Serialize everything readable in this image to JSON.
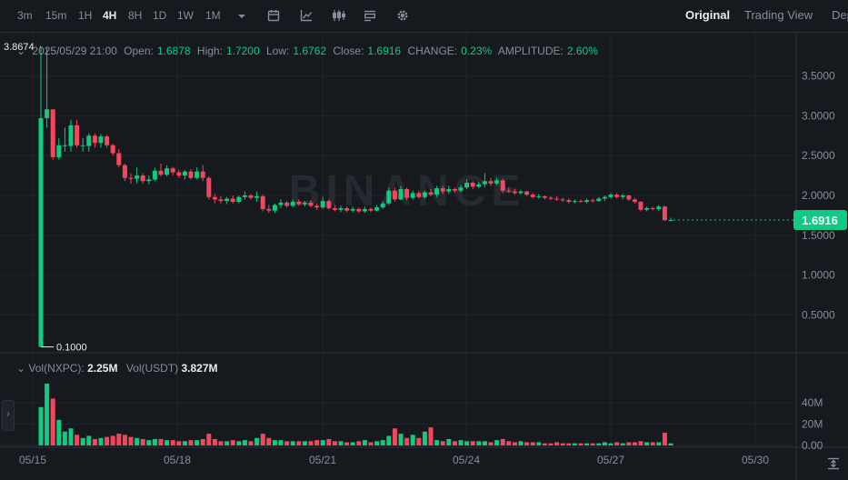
{
  "toolbar": {
    "timeframes": [
      "3m",
      "15m",
      "1H",
      "4H",
      "8H",
      "1D",
      "1W",
      "1M"
    ],
    "active_timeframe": "4H",
    "views": [
      "Original",
      "Trading View",
      "Depth"
    ],
    "active_view": "Original"
  },
  "ohlc": {
    "datetime": "2025/05/29 21:00",
    "open_label": "Open:",
    "open": "1.6878",
    "high_label": "High:",
    "high": "1.7200",
    "low_label": "Low:",
    "low": "1.6762",
    "close_label": "Close:",
    "close": "1.6916",
    "change_label": "CHANGE:",
    "change": "0.23%",
    "amplitude_label": "AMPLITUDE:",
    "amplitude": "2.60%"
  },
  "volume": {
    "label_a": "Vol(NXPC):",
    "value_a": "2.25M",
    "label_b": "Vol(USDT)",
    "value_b": "3.827M"
  },
  "colors": {
    "up": "#0ecb81",
    "down": "#f6465d",
    "grid": "#1f242b",
    "text": "#848e9c",
    "bg": "#161a1e"
  },
  "watermark": "BINANCE",
  "chart_data": {
    "type": "candlestick",
    "price_axis_ticks": [
      "3.5000",
      "3.0000",
      "2.5000",
      "2.0000",
      "1.5000",
      "1.0000",
      "0.5000"
    ],
    "price_ylim": [
      0.05,
      3.95
    ],
    "volume_axis_ticks": [
      "40M",
      "20M",
      "0.00"
    ],
    "volume_ylim": [
      0,
      58
    ],
    "x_ticks": [
      "05/15",
      "05/18",
      "05/21",
      "05/24",
      "05/27",
      "05/30"
    ],
    "last_price": "1.6916",
    "high_marker": "3.8674",
    "low_marker": "0.1000",
    "candles": [
      {
        "o": 0.1,
        "h": 3.8674,
        "l": 0.1,
        "c": 2.97,
        "v": 36
      },
      {
        "o": 2.97,
        "h": 3.85,
        "l": 2.85,
        "c": 3.08,
        "v": 58
      },
      {
        "o": 3.08,
        "h": 3.08,
        "l": 2.45,
        "c": 2.48,
        "v": 44
      },
      {
        "o": 2.48,
        "h": 2.72,
        "l": 2.45,
        "c": 2.63,
        "v": 24
      },
      {
        "o": 2.63,
        "h": 2.85,
        "l": 2.55,
        "c": 2.63,
        "v": 13
      },
      {
        "o": 2.62,
        "h": 2.95,
        "l": 2.55,
        "c": 2.88,
        "v": 16
      },
      {
        "o": 2.88,
        "h": 2.95,
        "l": 2.6,
        "c": 2.63,
        "v": 10
      },
      {
        "o": 2.63,
        "h": 2.72,
        "l": 2.55,
        "c": 2.63,
        "v": 7
      },
      {
        "o": 2.62,
        "h": 2.78,
        "l": 2.55,
        "c": 2.75,
        "v": 9
      },
      {
        "o": 2.75,
        "h": 2.78,
        "l": 2.6,
        "c": 2.66,
        "v": 6
      },
      {
        "o": 2.66,
        "h": 2.77,
        "l": 2.6,
        "c": 2.74,
        "v": 7
      },
      {
        "o": 2.74,
        "h": 2.76,
        "l": 2.6,
        "c": 2.63,
        "v": 8
      },
      {
        "o": 2.63,
        "h": 2.65,
        "l": 2.5,
        "c": 2.53,
        "v": 9
      },
      {
        "o": 2.53,
        "h": 2.58,
        "l": 2.35,
        "c": 2.38,
        "v": 11
      },
      {
        "o": 2.38,
        "h": 2.4,
        "l": 2.18,
        "c": 2.22,
        "v": 10
      },
      {
        "o": 2.22,
        "h": 2.28,
        "l": 2.15,
        "c": 2.21,
        "v": 8
      },
      {
        "o": 2.21,
        "h": 2.35,
        "l": 2.15,
        "c": 2.25,
        "v": 7
      },
      {
        "o": 2.25,
        "h": 2.28,
        "l": 2.15,
        "c": 2.18,
        "v": 6
      },
      {
        "o": 2.18,
        "h": 2.25,
        "l": 2.14,
        "c": 2.2,
        "v": 5
      },
      {
        "o": 2.2,
        "h": 2.35,
        "l": 2.18,
        "c": 2.31,
        "v": 6
      },
      {
        "o": 2.31,
        "h": 2.4,
        "l": 2.24,
        "c": 2.26,
        "v": 6
      },
      {
        "o": 2.26,
        "h": 2.38,
        "l": 2.24,
        "c": 2.34,
        "v": 5
      },
      {
        "o": 2.34,
        "h": 2.36,
        "l": 2.25,
        "c": 2.29,
        "v": 5
      },
      {
        "o": 2.29,
        "h": 2.32,
        "l": 2.22,
        "c": 2.25,
        "v": 4
      },
      {
        "o": 2.25,
        "h": 2.32,
        "l": 2.2,
        "c": 2.3,
        "v": 4
      },
      {
        "o": 2.3,
        "h": 2.33,
        "l": 2.2,
        "c": 2.22,
        "v": 5
      },
      {
        "o": 2.22,
        "h": 2.35,
        "l": 2.2,
        "c": 2.3,
        "v": 5
      },
      {
        "o": 2.3,
        "h": 2.38,
        "l": 2.18,
        "c": 2.22,
        "v": 6
      },
      {
        "o": 2.22,
        "h": 2.24,
        "l": 1.95,
        "c": 1.98,
        "v": 11
      },
      {
        "o": 1.98,
        "h": 2.02,
        "l": 1.9,
        "c": 1.95,
        "v": 6
      },
      {
        "o": 1.95,
        "h": 1.99,
        "l": 1.9,
        "c": 1.93,
        "v": 4
      },
      {
        "o": 1.93,
        "h": 1.98,
        "l": 1.89,
        "c": 1.96,
        "v": 4
      },
      {
        "o": 1.96,
        "h": 2.0,
        "l": 1.9,
        "c": 1.92,
        "v": 5
      },
      {
        "o": 1.92,
        "h": 2.0,
        "l": 1.9,
        "c": 1.98,
        "v": 4
      },
      {
        "o": 1.98,
        "h": 2.05,
        "l": 1.95,
        "c": 2.0,
        "v": 5
      },
      {
        "o": 2.0,
        "h": 2.02,
        "l": 1.95,
        "c": 1.97,
        "v": 4
      },
      {
        "o": 1.97,
        "h": 2.05,
        "l": 1.92,
        "c": 1.99,
        "v": 7
      },
      {
        "o": 1.99,
        "h": 2.01,
        "l": 1.8,
        "c": 1.83,
        "v": 11
      },
      {
        "o": 1.83,
        "h": 1.88,
        "l": 1.78,
        "c": 1.81,
        "v": 7
      },
      {
        "o": 1.81,
        "h": 1.9,
        "l": 1.78,
        "c": 1.88,
        "v": 5
      },
      {
        "o": 1.88,
        "h": 1.95,
        "l": 1.84,
        "c": 1.91,
        "v": 5
      },
      {
        "o": 1.91,
        "h": 1.93,
        "l": 1.85,
        "c": 1.87,
        "v": 4
      },
      {
        "o": 1.87,
        "h": 1.95,
        "l": 1.85,
        "c": 1.92,
        "v": 4
      },
      {
        "o": 1.92,
        "h": 1.95,
        "l": 1.87,
        "c": 1.89,
        "v": 4
      },
      {
        "o": 1.89,
        "h": 1.93,
        "l": 1.86,
        "c": 1.91,
        "v": 4
      },
      {
        "o": 1.91,
        "h": 1.94,
        "l": 1.85,
        "c": 1.87,
        "v": 4
      },
      {
        "o": 1.87,
        "h": 1.9,
        "l": 1.82,
        "c": 1.85,
        "v": 5
      },
      {
        "o": 1.85,
        "h": 1.98,
        "l": 1.83,
        "c": 1.93,
        "v": 5
      },
      {
        "o": 1.93,
        "h": 1.95,
        "l": 1.82,
        "c": 1.84,
        "v": 6
      },
      {
        "o": 1.84,
        "h": 1.88,
        "l": 1.8,
        "c": 1.82,
        "v": 4
      },
      {
        "o": 1.82,
        "h": 1.87,
        "l": 1.79,
        "c": 1.84,
        "v": 4
      },
      {
        "o": 1.84,
        "h": 1.86,
        "l": 1.79,
        "c": 1.81,
        "v": 3
      },
      {
        "o": 1.81,
        "h": 1.86,
        "l": 1.79,
        "c": 1.83,
        "v": 3
      },
      {
        "o": 1.83,
        "h": 1.85,
        "l": 1.78,
        "c": 1.8,
        "v": 4
      },
      {
        "o": 1.8,
        "h": 1.86,
        "l": 1.78,
        "c": 1.83,
        "v": 5
      },
      {
        "o": 1.83,
        "h": 1.85,
        "l": 1.79,
        "c": 1.81,
        "v": 3
      },
      {
        "o": 1.81,
        "h": 1.88,
        "l": 1.8,
        "c": 1.85,
        "v": 4
      },
      {
        "o": 1.85,
        "h": 1.93,
        "l": 1.83,
        "c": 1.9,
        "v": 5
      },
      {
        "o": 1.9,
        "h": 2.1,
        "l": 1.88,
        "c": 2.06,
        "v": 9
      },
      {
        "o": 2.06,
        "h": 2.1,
        "l": 1.92,
        "c": 1.95,
        "v": 16
      },
      {
        "o": 1.95,
        "h": 2.12,
        "l": 1.94,
        "c": 2.08,
        "v": 11
      },
      {
        "o": 2.08,
        "h": 2.1,
        "l": 1.94,
        "c": 1.97,
        "v": 7
      },
      {
        "o": 1.97,
        "h": 2.06,
        "l": 1.95,
        "c": 2.03,
        "v": 10
      },
      {
        "o": 2.03,
        "h": 2.06,
        "l": 1.96,
        "c": 1.98,
        "v": 7
      },
      {
        "o": 1.98,
        "h": 2.06,
        "l": 1.96,
        "c": 2.04,
        "v": 13
      },
      {
        "o": 2.04,
        "h": 2.08,
        "l": 1.99,
        "c": 2.01,
        "v": 17
      },
      {
        "o": 2.01,
        "h": 2.12,
        "l": 1.98,
        "c": 2.09,
        "v": 5
      },
      {
        "o": 2.09,
        "h": 2.12,
        "l": 2.02,
        "c": 2.05,
        "v": 4
      },
      {
        "o": 2.05,
        "h": 2.12,
        "l": 2.02,
        "c": 2.08,
        "v": 6
      },
      {
        "o": 2.08,
        "h": 2.1,
        "l": 2.03,
        "c": 2.06,
        "v": 4
      },
      {
        "o": 2.06,
        "h": 2.13,
        "l": 2.04,
        "c": 2.1,
        "v": 5
      },
      {
        "o": 2.1,
        "h": 2.2,
        "l": 2.08,
        "c": 2.16,
        "v": 4
      },
      {
        "o": 2.16,
        "h": 2.18,
        "l": 2.08,
        "c": 2.11,
        "v": 4
      },
      {
        "o": 2.11,
        "h": 2.17,
        "l": 2.09,
        "c": 2.14,
        "v": 4
      },
      {
        "o": 2.14,
        "h": 2.28,
        "l": 2.1,
        "c": 2.18,
        "v": 4
      },
      {
        "o": 2.18,
        "h": 2.22,
        "l": 2.12,
        "c": 2.15,
        "v": 3
      },
      {
        "o": 2.15,
        "h": 2.22,
        "l": 2.13,
        "c": 2.19,
        "v": 5
      },
      {
        "o": 2.19,
        "h": 2.21,
        "l": 2.03,
        "c": 2.06,
        "v": 6
      },
      {
        "o": 2.06,
        "h": 2.1,
        "l": 2.03,
        "c": 2.05,
        "v": 4
      },
      {
        "o": 2.05,
        "h": 2.08,
        "l": 2.01,
        "c": 2.03,
        "v": 3
      },
      {
        "o": 2.03,
        "h": 2.07,
        "l": 2.01,
        "c": 2.05,
        "v": 4
      },
      {
        "o": 2.05,
        "h": 2.06,
        "l": 1.99,
        "c": 2.01,
        "v": 3
      },
      {
        "o": 2.01,
        "h": 2.03,
        "l": 1.96,
        "c": 1.98,
        "v": 3
      },
      {
        "o": 1.98,
        "h": 2.02,
        "l": 1.96,
        "c": 1.99,
        "v": 3
      },
      {
        "o": 1.99,
        "h": 2.0,
        "l": 1.95,
        "c": 1.97,
        "v": 2
      },
      {
        "o": 1.97,
        "h": 1.99,
        "l": 1.94,
        "c": 1.96,
        "v": 2
      },
      {
        "o": 1.96,
        "h": 1.99,
        "l": 1.93,
        "c": 1.95,
        "v": 3
      },
      {
        "o": 1.95,
        "h": 1.97,
        "l": 1.92,
        "c": 1.94,
        "v": 2
      },
      {
        "o": 1.94,
        "h": 1.96,
        "l": 1.9,
        "c": 1.92,
        "v": 2
      },
      {
        "o": 1.92,
        "h": 1.95,
        "l": 1.9,
        "c": 1.93,
        "v": 2
      },
      {
        "o": 1.93,
        "h": 1.95,
        "l": 1.91,
        "c": 1.92,
        "v": 2
      },
      {
        "o": 1.92,
        "h": 1.96,
        "l": 1.9,
        "c": 1.94,
        "v": 2
      },
      {
        "o": 1.94,
        "h": 1.96,
        "l": 1.91,
        "c": 1.93,
        "v": 2
      },
      {
        "o": 1.93,
        "h": 1.98,
        "l": 1.92,
        "c": 1.96,
        "v": 2
      },
      {
        "o": 1.96,
        "h": 2.0,
        "l": 1.93,
        "c": 1.98,
        "v": 3
      },
      {
        "o": 1.98,
        "h": 2.03,
        "l": 1.96,
        "c": 2.01,
        "v": 2
      },
      {
        "o": 2.01,
        "h": 2.03,
        "l": 1.96,
        "c": 1.98,
        "v": 3
      },
      {
        "o": 1.98,
        "h": 2.02,
        "l": 1.95,
        "c": 2.0,
        "v": 2
      },
      {
        "o": 2.0,
        "h": 2.01,
        "l": 1.93,
        "c": 1.95,
        "v": 3
      },
      {
        "o": 1.95,
        "h": 1.97,
        "l": 1.9,
        "c": 1.92,
        "v": 3
      },
      {
        "o": 1.92,
        "h": 1.93,
        "l": 1.8,
        "c": 1.82,
        "v": 4
      },
      {
        "o": 1.82,
        "h": 1.86,
        "l": 1.8,
        "c": 1.84,
        "v": 3
      },
      {
        "o": 1.84,
        "h": 1.86,
        "l": 1.81,
        "c": 1.83,
        "v": 3
      },
      {
        "o": 1.83,
        "h": 1.88,
        "l": 1.81,
        "c": 1.86,
        "v": 3
      },
      {
        "o": 1.86,
        "h": 1.87,
        "l": 1.68,
        "c": 1.69,
        "v": 12
      },
      {
        "o": 1.6878,
        "h": 1.72,
        "l": 1.6762,
        "c": 1.6916,
        "v": 2
      }
    ]
  }
}
